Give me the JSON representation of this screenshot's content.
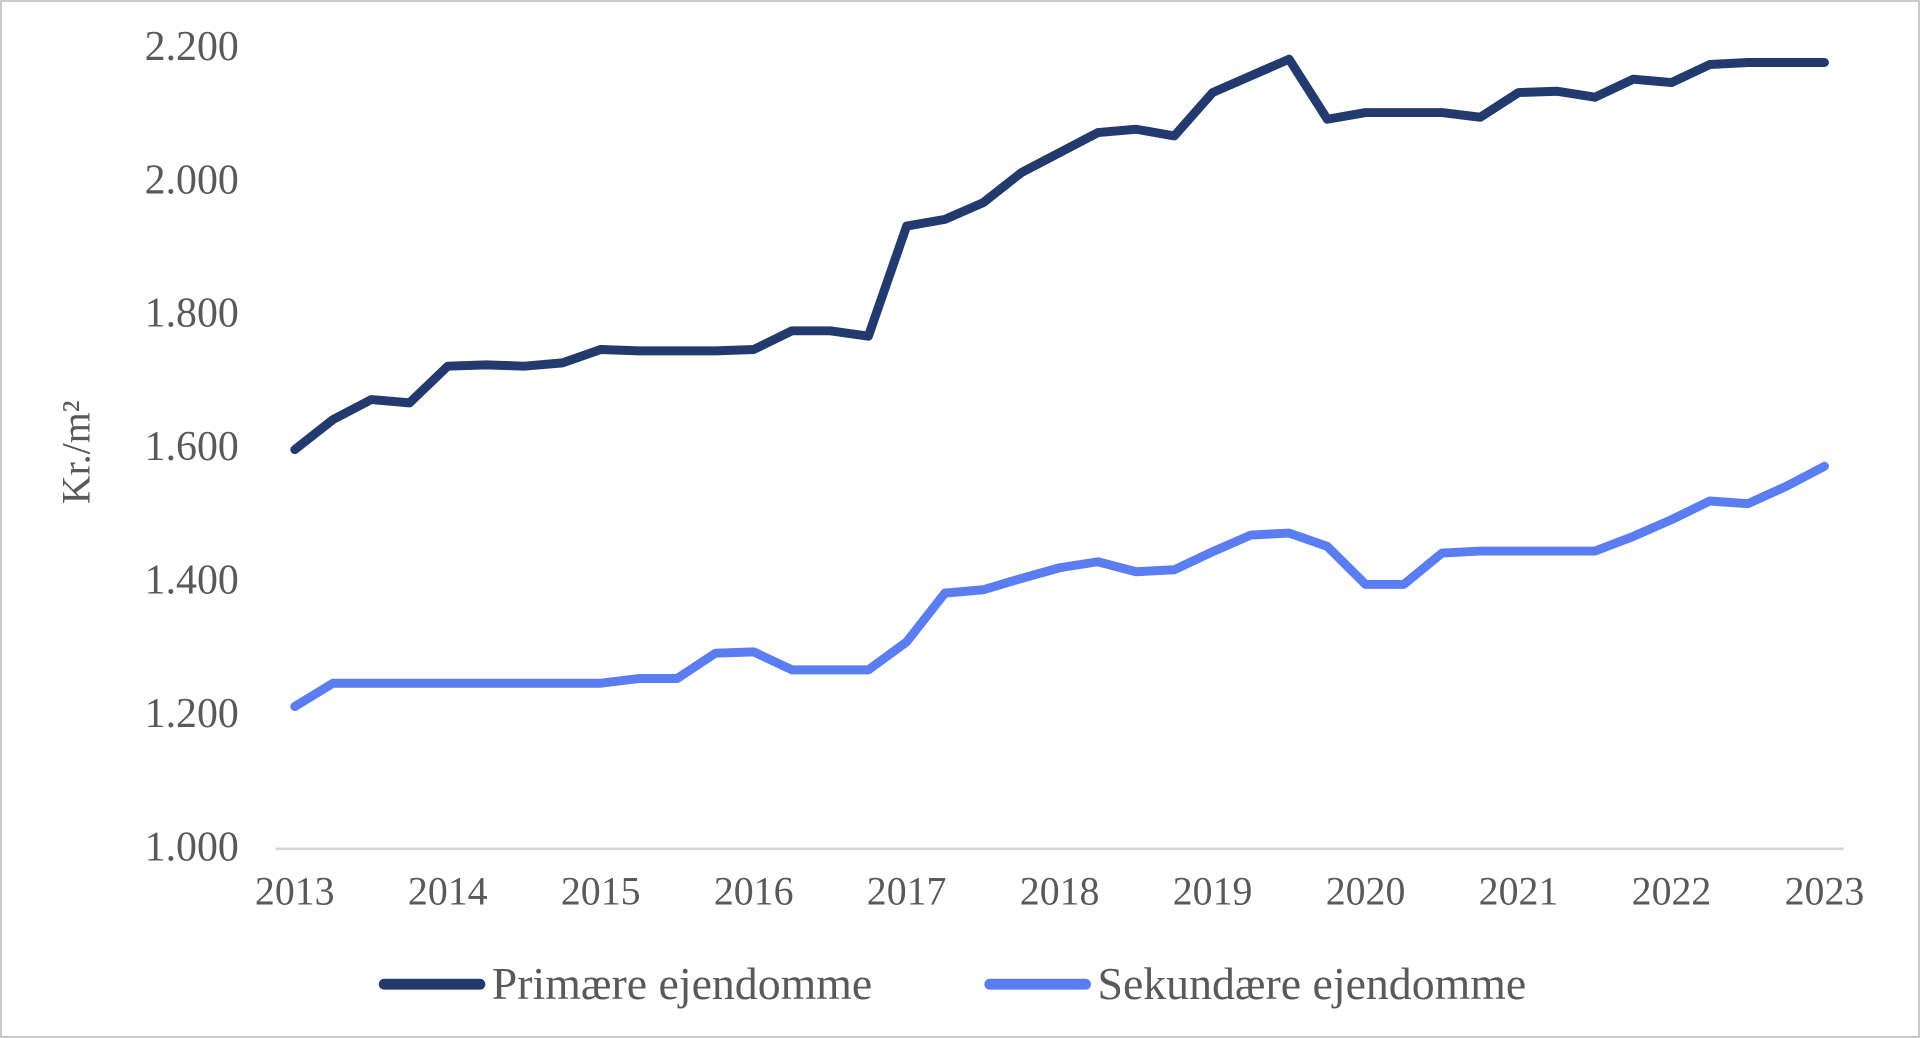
{
  "chart_data": {
    "type": "line",
    "title": "",
    "ylabel": "Kr./m²",
    "xlabel": "",
    "x_frequency": "quarterly",
    "x_range": "2013Q1-2023Q1",
    "x_tick_labels": [
      "2013",
      "2014",
      "2015",
      "2016",
      "2017",
      "2018",
      "2019",
      "2020",
      "2021",
      "2022",
      "2023"
    ],
    "ylim": [
      1000,
      2200
    ],
    "ytick_values": [
      1000,
      1200,
      1400,
      1600,
      1800,
      2000,
      2200
    ],
    "ytick_labels": [
      "1.000",
      "1.200",
      "1.400",
      "1.600",
      "1.800",
      "2.000",
      "2.200"
    ],
    "grid": false,
    "legend_position": "bottom",
    "axis_color": "#d6d6d6",
    "text_color": "#595959",
    "series": [
      {
        "name": "Primære ejendomme",
        "color": "#233a6e",
        "values": [
          1595,
          1640,
          1670,
          1665,
          1720,
          1722,
          1720,
          1725,
          1745,
          1743,
          1743,
          1743,
          1745,
          1773,
          1773,
          1765,
          1930,
          1940,
          1965,
          2010,
          2040,
          2070,
          2075,
          2065,
          2130,
          2155,
          2180,
          2090,
          2100,
          2100,
          2100,
          2093,
          2130,
          2132,
          2123,
          2150,
          2145,
          2172,
          2175,
          2175,
          2175
        ]
      },
      {
        "name": "Sekundære ejendomme",
        "color": "#5b7df2",
        "values": [
          1210,
          1245,
          1245,
          1245,
          1245,
          1245,
          1245,
          1245,
          1245,
          1252,
          1252,
          1290,
          1292,
          1265,
          1265,
          1265,
          1307,
          1380,
          1385,
          1402,
          1418,
          1427,
          1412,
          1415,
          1442,
          1467,
          1470,
          1450,
          1393,
          1393,
          1440,
          1443,
          1443,
          1443,
          1443,
          1465,
          1490,
          1518,
          1514,
          1540,
          1570
        ]
      }
    ]
  }
}
